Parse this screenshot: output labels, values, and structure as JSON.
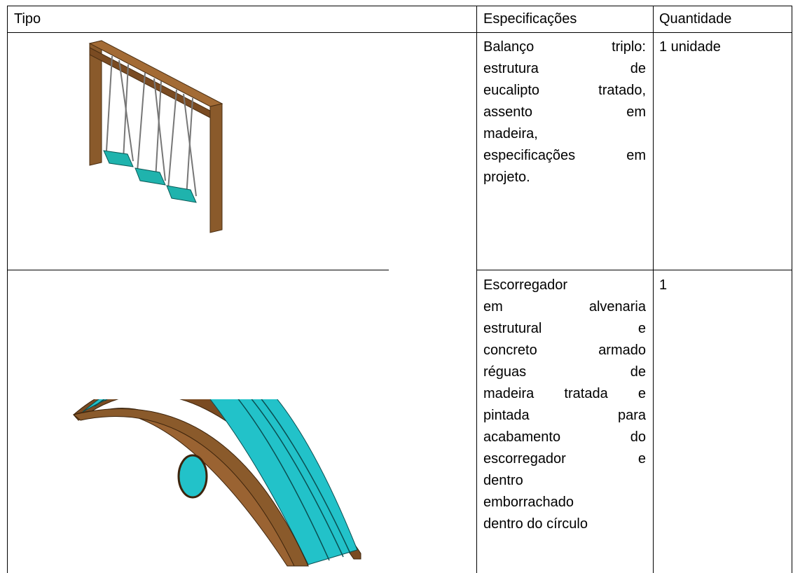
{
  "table": {
    "header": [
      "Tipo",
      "Especificações",
      "Quantidade"
    ],
    "rows": [
      {
        "specification": [
          "Balanço triplo:",
          "estrutura de",
          "eucalipto tratado,",
          "assento em",
          "madeira,",
          "especificações em",
          "projeto."
        ],
        "quantity": "1 unidade"
      },
      {
        "specification": [
          "Escorregador",
          "em alvenaria",
          "estrutural e",
          "concreto armado",
          "réguas de",
          "madeira tratada e",
          "pintada para",
          "acabamento do",
          "escorregador e",
          "dentro",
          "emborrachado",
          "dentro do círculo"
        ],
        "quantity": "1"
      }
    ]
  }
}
